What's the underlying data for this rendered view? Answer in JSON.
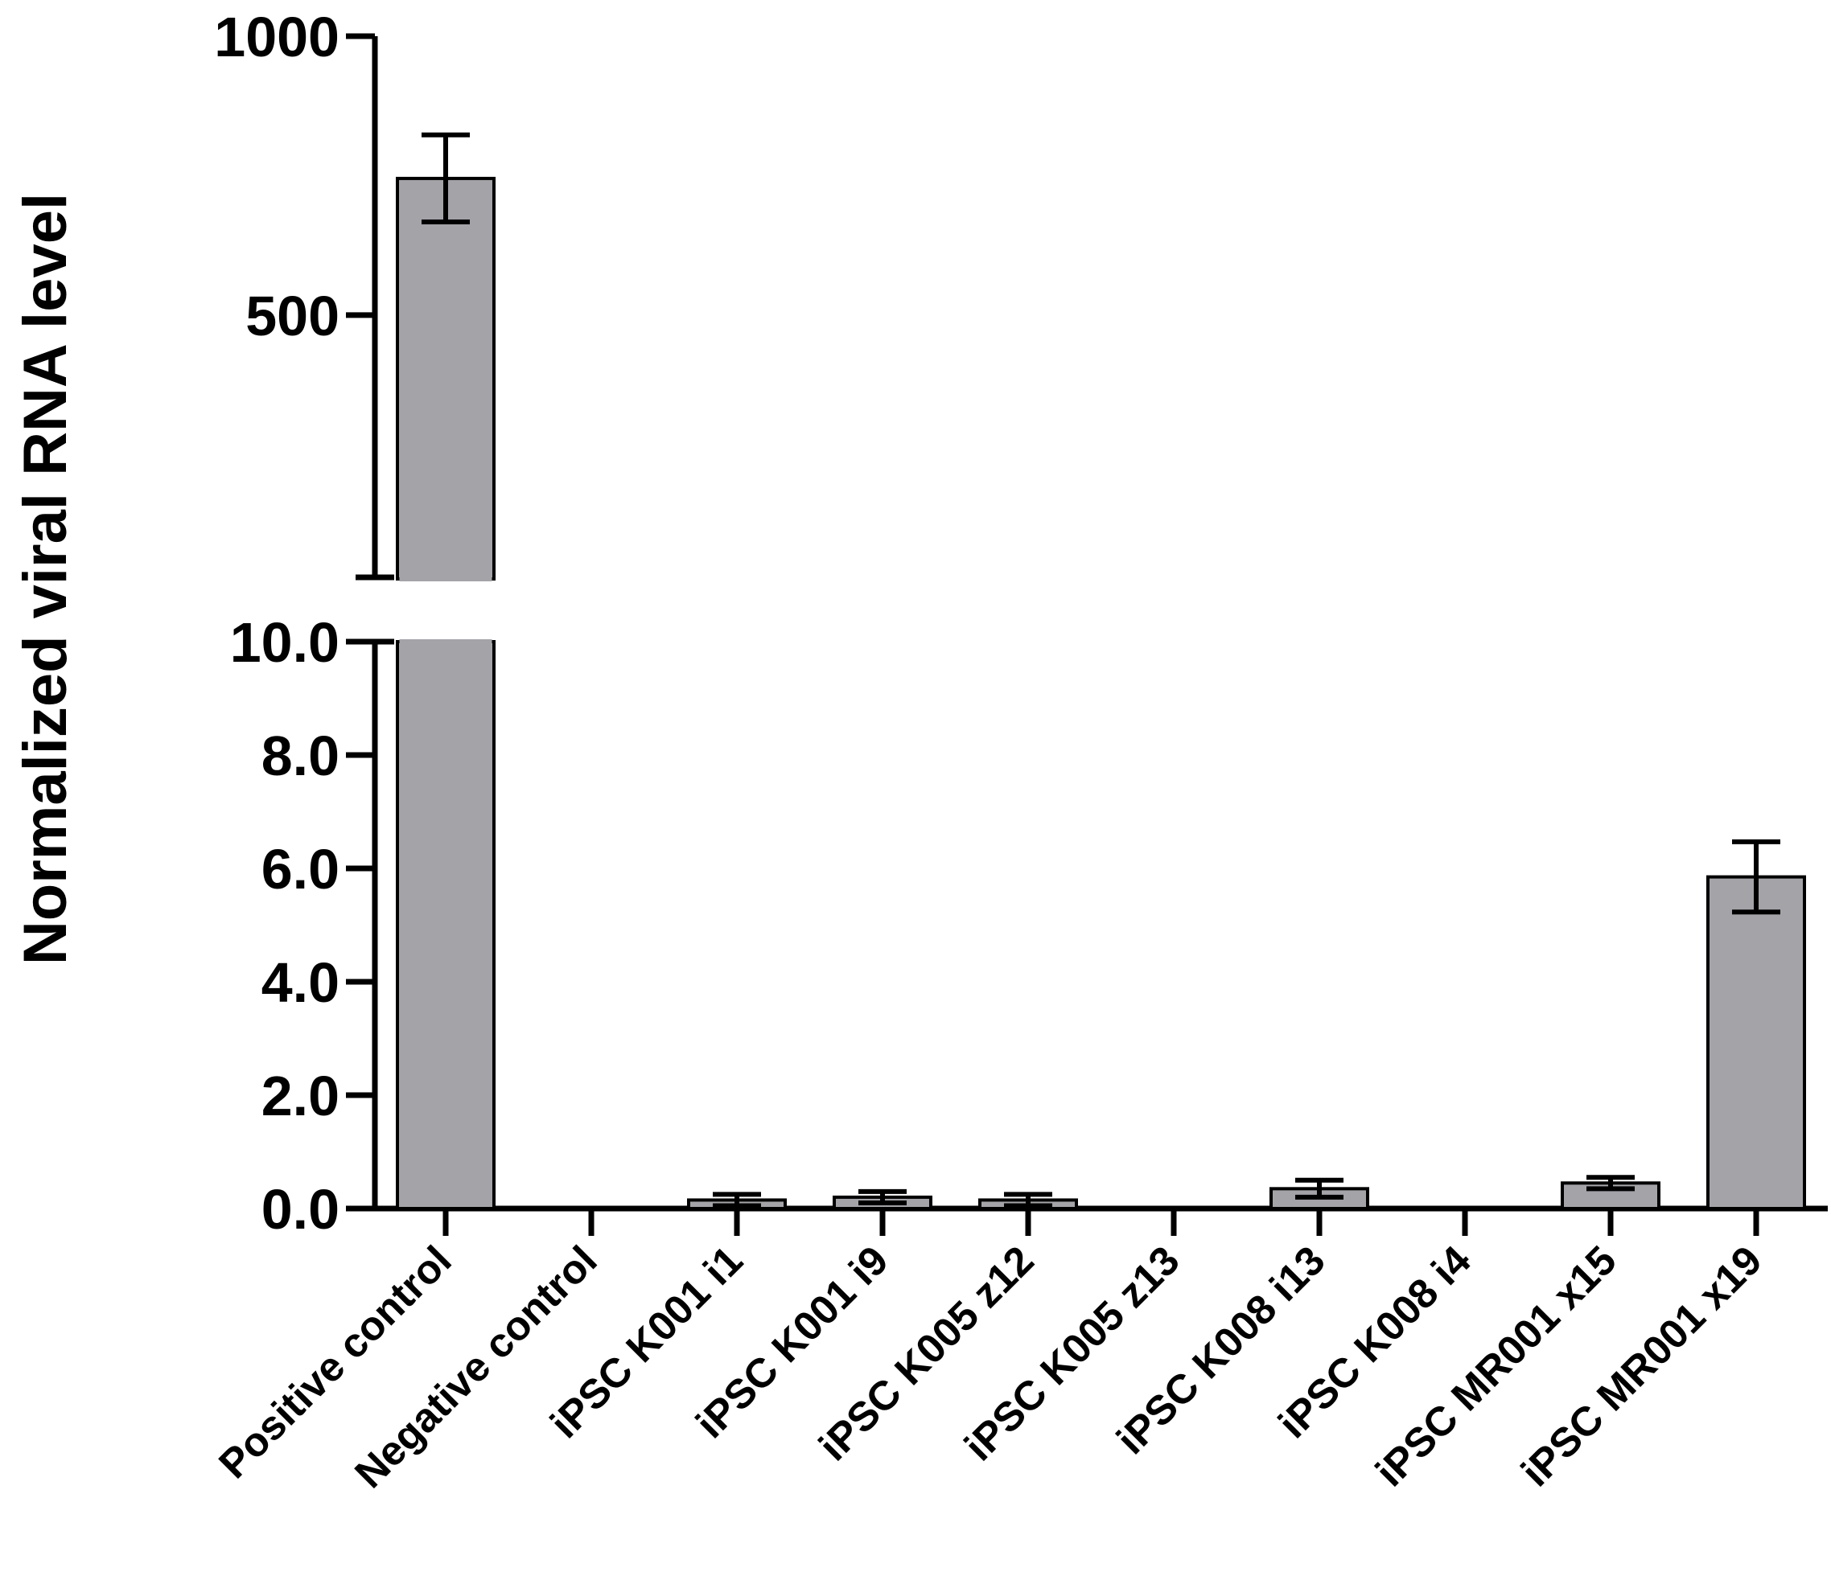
{
  "chart_data": {
    "type": "bar",
    "title": "",
    "xlabel": "",
    "ylabel": "Normalized viral RNA level",
    "axis_break": true,
    "categories": [
      "Positive control",
      "Negative control",
      "iPSC K001 i1",
      "iPSC K001 i9",
      "iPSC K005 z12",
      "iPSC K005 z13",
      "iPSC K008 i13",
      "iPSC K008 i4",
      "iPSC MR001 x15",
      "iPSC MR001 x19"
    ],
    "values": [
      745,
      0,
      0.15,
      0.2,
      0.15,
      0,
      0.35,
      0,
      0.45,
      5.85
    ],
    "errors": [
      78,
      0,
      0.1,
      0.1,
      0.1,
      0,
      0.15,
      0,
      0.1,
      0.62
    ],
    "lower_segment": {
      "ylim": [
        0,
        10
      ],
      "ticks": [
        "0.0",
        "2.0",
        "4.0",
        "6.0",
        "8.0",
        "10.0"
      ]
    },
    "upper_segment": {
      "ylim": [
        30,
        1000
      ],
      "ticks": [
        "500",
        "1000"
      ]
    },
    "bar_color": "#a4a3a8",
    "edge_color": "#000000",
    "grid": false,
    "legend": "none"
  }
}
